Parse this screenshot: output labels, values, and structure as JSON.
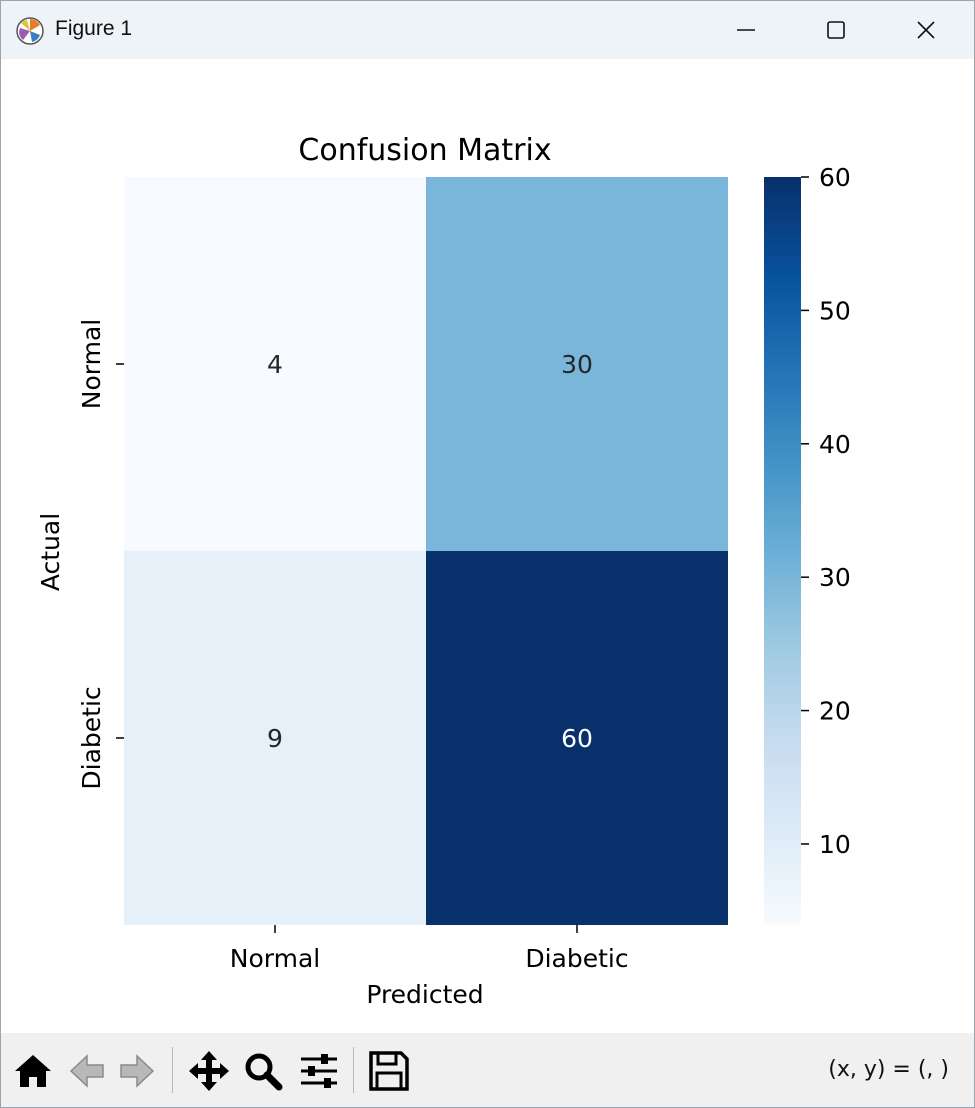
{
  "window": {
    "title": "Figure 1",
    "icons": {
      "app": "matplotlib-icon",
      "minimize": "minimize-icon",
      "maximize": "maximize-icon",
      "close": "close-icon"
    }
  },
  "toolbar": {
    "buttons": [
      {
        "name": "home-button",
        "icon": "home-icon"
      },
      {
        "name": "back-button",
        "icon": "arrow-left-icon"
      },
      {
        "name": "forward-button",
        "icon": "arrow-right-icon"
      },
      {
        "name": "pan-button",
        "icon": "move-icon"
      },
      {
        "name": "zoom-button",
        "icon": "magnifier-icon"
      },
      {
        "name": "configure-subplots-button",
        "icon": "sliders-icon"
      },
      {
        "name": "save-button",
        "icon": "floppy-disk-icon"
      }
    ],
    "coords_text": "(x, y) = (, )"
  },
  "chart_data": {
    "type": "heatmap",
    "title": "Confusion Matrix",
    "xlabel": "Predicted",
    "ylabel": "Actual",
    "x_categories": [
      "Normal",
      "Diabetic"
    ],
    "y_categories": [
      "Normal",
      "Diabetic"
    ],
    "values": [
      [
        4,
        30
      ],
      [
        9,
        60
      ]
    ],
    "annotations": [
      [
        "4",
        "30"
      ],
      [
        "9",
        "60"
      ]
    ],
    "colormap": "Blues",
    "colorbar": {
      "range": [
        4,
        60
      ],
      "ticks": [
        10,
        20,
        30,
        40,
        50,
        60
      ]
    },
    "colors": {
      "low": "#f7fbff",
      "high": "#08306b",
      "annotation_dark": "#262626",
      "annotation_light": "#ffffff"
    }
  }
}
